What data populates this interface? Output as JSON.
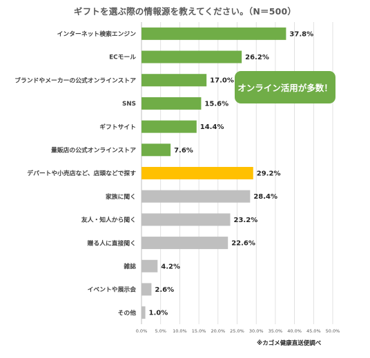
{
  "chart_data": {
    "type": "bar",
    "orientation": "horizontal",
    "title": "ギフトを選ぶ際の情報源を教えてください。（N＝500）",
    "categories": [
      "インターネット検索エンジン",
      "ECモール",
      "ブランドやメーカーの公式オンラインストア",
      "SNS",
      "ギフトサイト",
      "量販店の公式オンラインストア",
      "デパートや小売店など、店頭などで探す",
      "家族に聞く",
      "友人・知人から聞く",
      "贈る人に直接聞く",
      "雑誌",
      "イベントや展示会",
      "その他"
    ],
    "values": [
      37.8,
      26.2,
      17.0,
      15.6,
      14.4,
      7.6,
      29.2,
      28.4,
      23.2,
      22.6,
      4.2,
      2.6,
      1.0
    ],
    "value_labels": [
      "37.8%",
      "26.2%",
      "17.0%",
      "15.6%",
      "14.4%",
      "7.6%",
      "29.2%",
      "28.4%",
      "23.2%",
      "22.6%",
      "4.2%",
      "2.6%",
      "1.0%"
    ],
    "bar_colors": [
      "#70ad47",
      "#70ad47",
      "#70ad47",
      "#70ad47",
      "#70ad47",
      "#70ad47",
      "#ffc000",
      "#bfbfbf",
      "#bfbfbf",
      "#bfbfbf",
      "#bfbfbf",
      "#bfbfbf",
      "#bfbfbf"
    ],
    "xlim": [
      0,
      50
    ],
    "x_ticks": [
      "0.0%",
      "5.0%",
      "10.0%",
      "15.0%",
      "20.0%",
      "25.0%",
      "30.0%",
      "35.0%",
      "40.0%",
      "45.0%",
      "50.0%"
    ],
    "grid": "vertical",
    "legend": "none"
  },
  "annotation": {
    "text": "オンライン活用が多数！",
    "color": "#70ad47"
  },
  "source_note": "※カゴメ健康直送便調べ"
}
